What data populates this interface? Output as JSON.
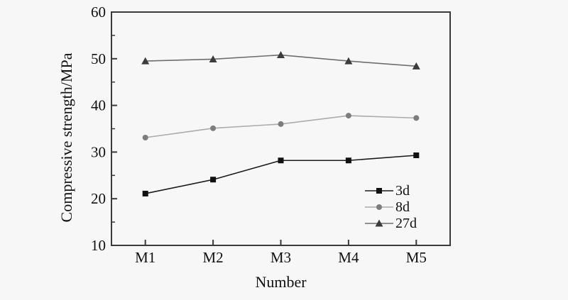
{
  "figure": {
    "background": "#f7f7f7",
    "axis_color": "#3a3a3a",
    "text_color": "#111111"
  },
  "chart_data": {
    "type": "line",
    "xlabel": "Number",
    "ylabel": "Compressive strength/MPa",
    "categories": [
      "M1",
      "M2",
      "M3",
      "M4",
      "M5"
    ],
    "ylim": [
      10,
      60
    ],
    "yticks": [
      10,
      20,
      30,
      40,
      50,
      60
    ],
    "yticks_minor": [
      15,
      25,
      35,
      45,
      55
    ],
    "grid": false,
    "legend_position": "inside-bottom-right",
    "series": [
      {
        "name": "3d",
        "values": [
          21.1,
          24.1,
          28.2,
          28.2,
          29.3
        ],
        "line_color": "#1a1a1a",
        "marker_color": "#111111",
        "marker": "square"
      },
      {
        "name": "8d",
        "values": [
          33.1,
          35.1,
          36.0,
          37.8,
          37.3
        ],
        "line_color": "#ababab",
        "marker_color": "#7d7d7d",
        "marker": "circle"
      },
      {
        "name": "27d",
        "values": [
          49.5,
          49.9,
          50.8,
          49.5,
          48.4
        ],
        "line_color": "#6e6e6e",
        "marker_color": "#3c3c3c",
        "marker": "triangle"
      }
    ]
  }
}
